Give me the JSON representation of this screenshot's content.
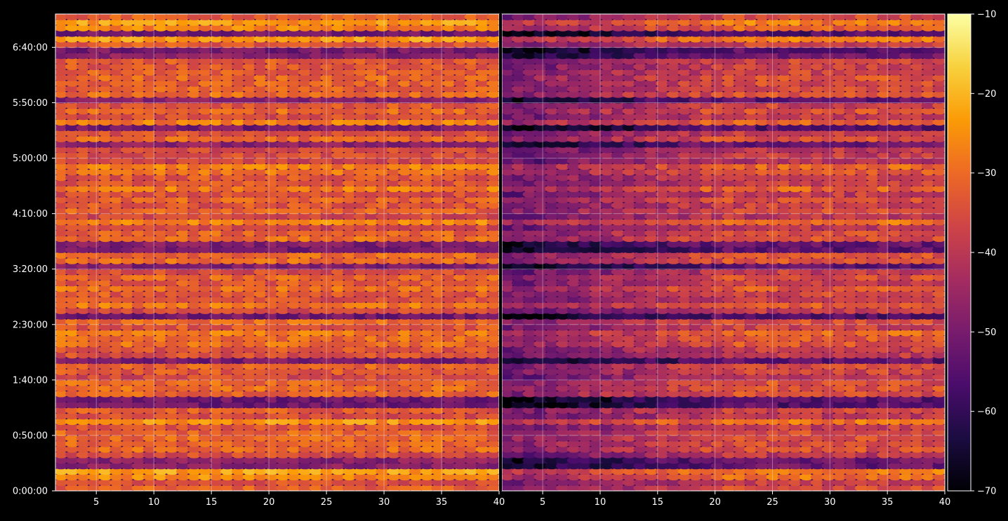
{
  "chart_data": [
    {
      "type": "heatmap",
      "panel": "left",
      "title": "",
      "xlabel": "",
      "ylabel": "",
      "xlim": [
        1,
        40
      ],
      "ylim": [
        "0:00:00",
        "7:10:00"
      ],
      "x_ticks": [
        "5",
        "10",
        "15",
        "20",
        "25",
        "30",
        "35",
        "40"
      ],
      "y_ticks": [
        "0:00:00",
        "0:50:00",
        "1:40:00",
        "2:30:00",
        "3:20:00",
        "4:10:00",
        "5:00:00",
        "5:50:00",
        "6:40:00"
      ],
      "grid": true,
      "colormap": "inferno",
      "value_level_description": "mostly -40 to -25, dark bands near 0:20, 1:20, 3:35, 3:55, 6:10, 6:50"
    },
    {
      "type": "heatmap",
      "panel": "right",
      "title": "",
      "xlabel": "",
      "ylabel": "",
      "xlim": [
        1,
        40
      ],
      "ylim": [
        "0:00:00",
        "7:10:00"
      ],
      "x_ticks": [
        "5",
        "10",
        "15",
        "20",
        "25",
        "30",
        "35",
        "40"
      ],
      "grid": true,
      "colormap": "inferno",
      "value_level_description": "low (around -60 to -45) for columns 1-15, rising to -40 to -25 toward column 40"
    }
  ],
  "colorbar": {
    "min": -70,
    "max": -10,
    "ticks": [
      "−10",
      "−20",
      "−30",
      "−40",
      "−50",
      "−60",
      "−70"
    ],
    "colors": [
      "#000004",
      "#1b0c41",
      "#4a0c6b",
      "#781c6d",
      "#a52c60",
      "#cf4446",
      "#ed6925",
      "#fb9b06",
      "#f7d13d",
      "#fcffa4"
    ]
  },
  "background_color": "#000000",
  "grid_color": "#ffffff"
}
